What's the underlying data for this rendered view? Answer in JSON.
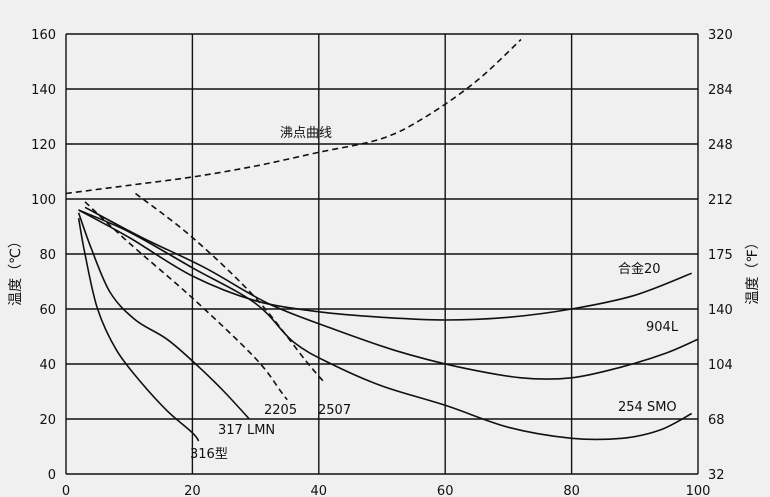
{
  "chart_data": {
    "type": "line",
    "title": "",
    "xlabel": "",
    "ylabel": "温度（℃）",
    "ylabel_right": "温度（℉）",
    "xlim": [
      0,
      100
    ],
    "ylim": [
      0,
      160
    ],
    "x_ticks": [
      "0",
      "20",
      "40",
      "60",
      "80",
      "100"
    ],
    "y_ticks": [
      "0",
      "20",
      "40",
      "60",
      "80",
      "100",
      "120",
      "140",
      "160"
    ],
    "y2_ticks": [
      "32",
      "68",
      "104",
      "140",
      "175",
      "212",
      "248",
      "284",
      "320"
    ],
    "grid": true,
    "series": [
      {
        "name": "沸点曲线",
        "style": "dashed",
        "points": [
          [
            0,
            102
          ],
          [
            10,
            105
          ],
          [
            20,
            108
          ],
          [
            30,
            112
          ],
          [
            40,
            117
          ],
          [
            50,
            122
          ],
          [
            57,
            130
          ],
          [
            65,
            143
          ],
          [
            72,
            158
          ]
        ]
      },
      {
        "name": "2205",
        "style": "dashed",
        "points": [
          [
            3,
            99
          ],
          [
            10,
            84
          ],
          [
            20,
            64
          ],
          [
            30,
            42
          ],
          [
            34,
            30
          ],
          [
            35,
            27
          ]
        ]
      },
      {
        "name": "2507",
        "style": "dashed",
        "points": [
          [
            11,
            102
          ],
          [
            20,
            86
          ],
          [
            30,
            64
          ],
          [
            38,
            41
          ],
          [
            41,
            33
          ]
        ]
      },
      {
        "name": "316型",
        "style": "solid",
        "points": [
          [
            2,
            93
          ],
          [
            3,
            80
          ],
          [
            5,
            60
          ],
          [
            8,
            45
          ],
          [
            12,
            33
          ],
          [
            16,
            23
          ],
          [
            20,
            15
          ],
          [
            21,
            12
          ]
        ]
      },
      {
        "name": "317 LMN",
        "style": "solid",
        "points": [
          [
            2,
            95
          ],
          [
            4,
            82
          ],
          [
            7,
            66
          ],
          [
            11,
            56
          ],
          [
            16,
            49
          ],
          [
            21,
            39
          ],
          [
            25,
            30
          ],
          [
            29,
            20
          ]
        ]
      },
      {
        "name": "合金20",
        "style": "solid",
        "points": [
          [
            2,
            96
          ],
          [
            10,
            86
          ],
          [
            20,
            72
          ],
          [
            30,
            63
          ],
          [
            40,
            59
          ],
          [
            50,
            57
          ],
          [
            60,
            56
          ],
          [
            70,
            57
          ],
          [
            80,
            60
          ],
          [
            90,
            65
          ],
          [
            99,
            73
          ]
        ]
      },
      {
        "name": "904L",
        "style": "solid",
        "points": [
          [
            3,
            97
          ],
          [
            12,
            86
          ],
          [
            22,
            75
          ],
          [
            32,
            62
          ],
          [
            42,
            53
          ],
          [
            52,
            45
          ],
          [
            62,
            39
          ],
          [
            72,
            35
          ],
          [
            80,
            35
          ],
          [
            88,
            39
          ],
          [
            95,
            44
          ],
          [
            100,
            49
          ]
        ]
      },
      {
        "name": "254 SMO",
        "style": "solid",
        "points": [
          [
            2,
            96
          ],
          [
            10,
            88
          ],
          [
            20,
            75
          ],
          [
            30,
            62
          ],
          [
            36,
            48
          ],
          [
            42,
            40
          ],
          [
            50,
            32
          ],
          [
            60,
            25
          ],
          [
            70,
            17
          ],
          [
            80,
            13
          ],
          [
            88,
            13
          ],
          [
            94,
            16
          ],
          [
            99,
            22
          ]
        ]
      }
    ],
    "annotations": [
      {
        "text": "沸点曲线",
        "series": "沸点曲线"
      },
      {
        "text": "2205",
        "series": "2205"
      },
      {
        "text": "2507",
        "series": "2507"
      },
      {
        "text": "316型",
        "series": "316型"
      },
      {
        "text": "317 LMN",
        "series": "317 LMN"
      },
      {
        "text": "合金20",
        "series": "合金20"
      },
      {
        "text": "904L",
        "series": "904L"
      },
      {
        "text": "254 SMO",
        "series": "254 SMO"
      }
    ]
  }
}
